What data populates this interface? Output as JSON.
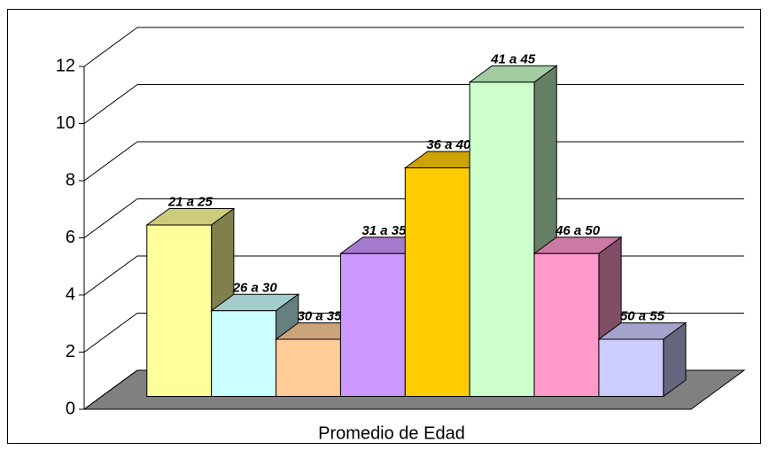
{
  "chart_data": {
    "type": "bar3d",
    "x_label": "Promedio de Edad",
    "categories": [
      "21 a 25",
      "26 a 30",
      "30 a 35",
      "31 a 35",
      "36 a 40",
      "41 a 45",
      "46 a 50",
      "50 a 55"
    ],
    "values": [
      6,
      3,
      2,
      5,
      8,
      11,
      5,
      2
    ],
    "colors": [
      "#ffff99",
      "#ccffff",
      "#ffcc99",
      "#cc99ff",
      "#ffcc00",
      "#ccffcc",
      "#ff99cc",
      "#ccccff"
    ],
    "ylim": [
      0,
      12
    ],
    "yticks": [
      0,
      2,
      4,
      6,
      8,
      10,
      12
    ],
    "grid": true
  }
}
